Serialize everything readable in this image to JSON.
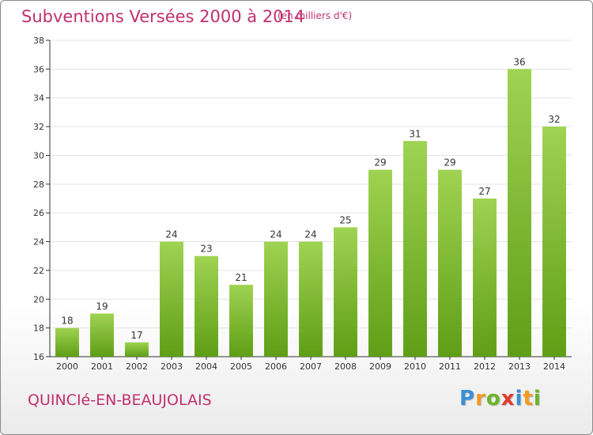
{
  "header": {
    "title": "Subventions Versées 2000 à 2014",
    "unit_note": "(en milliers d'€)"
  },
  "footer": {
    "place": "QUINCIé-EN-BEAUJOLAIS",
    "logo_letters": [
      "P",
      "r",
      "o",
      "x",
      "i",
      "t",
      "i"
    ],
    "logo_colors": [
      "#3a8fd6",
      "#f29a1f",
      "#6bb52a",
      "#e23b2e",
      "#3a8fd6",
      "#f29a1f",
      "#6bb52a"
    ]
  },
  "colors": {
    "accent": "#c0306e",
    "bar_top": "#9fd352",
    "bar_bottom": "#5f9e16",
    "grid": "#e3e3e3",
    "axis": "#333333"
  },
  "chart_data": {
    "type": "bar",
    "title": "Subventions Versées 2000 à 2014",
    "subtitle": "(en milliers d'€)",
    "xlabel": "",
    "ylabel": "",
    "categories": [
      "2000",
      "2001",
      "2002",
      "2003",
      "2004",
      "2005",
      "2006",
      "2007",
      "2008",
      "2009",
      "2010",
      "2011",
      "2012",
      "2013",
      "2014"
    ],
    "values": [
      18,
      19,
      17,
      24,
      23,
      21,
      24,
      24,
      25,
      29,
      31,
      29,
      27,
      36,
      32
    ],
    "ylim": [
      16,
      38
    ],
    "yticks": [
      16,
      18,
      20,
      22,
      24,
      26,
      28,
      30,
      32,
      34,
      36,
      38
    ],
    "grid": true,
    "data_labels": true
  }
}
